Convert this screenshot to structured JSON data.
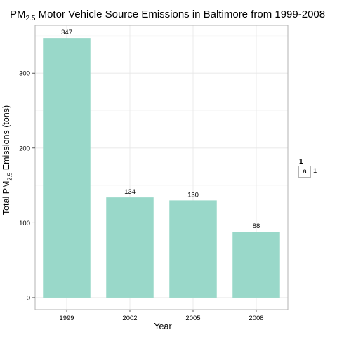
{
  "chart_data": {
    "type": "bar",
    "title_main": "PM",
    "title_sub": "2.5",
    "title_rest": " Motor Vehicle Source Emissions in Baltimore from 1999-2008",
    "xlabel": "Year",
    "ylabel_main": "Total PM",
    "ylabel_sub": "2.5",
    "ylabel_rest": " Emissions (tons)",
    "categories": [
      "1999",
      "2002",
      "2005",
      "2008"
    ],
    "values": [
      347,
      134,
      130,
      88
    ],
    "data_labels": [
      "347",
      "134",
      "130",
      "88"
    ],
    "ylim": [
      -16,
      364
    ],
    "yticks": [
      0,
      100,
      200,
      300
    ],
    "ytick_labels": [
      "0",
      "100",
      "200",
      "300"
    ],
    "bar_color": "#99d8c9",
    "grid": true,
    "legend": {
      "position": "right",
      "title": "1",
      "key_glyph": "a",
      "label": "1"
    }
  }
}
